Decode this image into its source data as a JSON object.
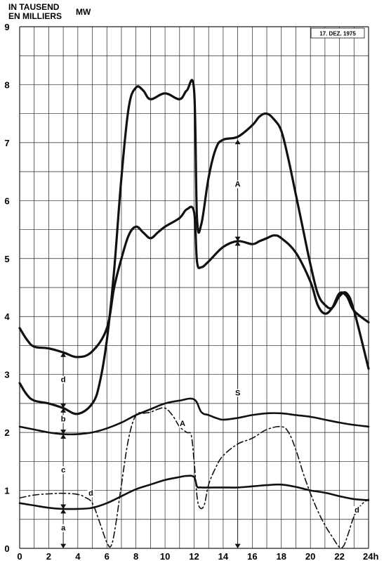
{
  "chart_data": {
    "type": "line",
    "ylabel_lines": [
      "IN TAUSEND",
      "EN MILLIERS"
    ],
    "ylabel_unit": "MW",
    "date_box": "17. DEZ. 1975",
    "xlim": [
      0,
      24
    ],
    "ylim": [
      0,
      9
    ],
    "x_ticks": [
      "0",
      "2",
      "4",
      "6",
      "8",
      "10",
      "12",
      "14",
      "16",
      "18",
      "20",
      "22",
      "24h"
    ],
    "y_ticks": [
      "0",
      "1",
      "2",
      "3",
      "4",
      "5",
      "6",
      "7",
      "8",
      "9"
    ],
    "grid": true,
    "series": [
      {
        "key": "upper",
        "style": "solid-heavy",
        "x": [
          0,
          0.5,
          1,
          2,
          3,
          4,
          5,
          5.5,
          6,
          6.5,
          7,
          7.5,
          8,
          8.5,
          9,
          10,
          11,
          11.5,
          12,
          12.2,
          12.5,
          13,
          13.5,
          14,
          15,
          16,
          16.5,
          17,
          17.5,
          18,
          18.5,
          19,
          19.5,
          20,
          20.5,
          21,
          21.5,
          22,
          22.5,
          23,
          24
        ],
        "y": [
          2.85,
          2.65,
          2.55,
          2.5,
          2.42,
          2.32,
          2.5,
          2.85,
          3.6,
          4.8,
          6.4,
          7.6,
          7.95,
          7.9,
          7.75,
          7.85,
          7.75,
          7.9,
          7.9,
          5.7,
          5.6,
          6.4,
          6.9,
          7.05,
          7.1,
          7.3,
          7.45,
          7.5,
          7.4,
          7.2,
          6.7,
          6.1,
          5.5,
          4.9,
          4.4,
          4.2,
          4.15,
          4.35,
          4.4,
          4.1,
          3.1
        ]
      },
      {
        "key": "middle",
        "style": "solid-heavy",
        "x": [
          0,
          0.5,
          1,
          2,
          3,
          4,
          5,
          6,
          6.5,
          7,
          7.5,
          8,
          8.5,
          9,
          9.5,
          10,
          11,
          11.5,
          12,
          12.2,
          12.5,
          13,
          14,
          15,
          16,
          16.5,
          17,
          17.5,
          18,
          19,
          20,
          20.5,
          21,
          21.5,
          22,
          22.5,
          23,
          24
        ],
        "y": [
          3.8,
          3.6,
          3.48,
          3.45,
          3.38,
          3.3,
          3.4,
          3.8,
          4.5,
          5.0,
          5.4,
          5.55,
          5.45,
          5.35,
          5.45,
          5.55,
          5.7,
          5.85,
          5.8,
          4.95,
          4.85,
          4.95,
          5.2,
          5.3,
          5.25,
          5.3,
          5.35,
          5.4,
          5.35,
          5.1,
          4.6,
          4.2,
          4.05,
          4.15,
          4.4,
          4.35,
          4.1,
          3.9
        ]
      },
      {
        "key": "b",
        "style": "solid",
        "x": [
          0,
          1,
          2,
          3,
          4,
          5,
          6,
          7,
          8,
          9,
          10,
          11,
          12,
          12.5,
          13,
          13.5,
          14,
          15,
          16,
          17,
          18,
          19,
          20,
          21,
          22,
          23,
          24
        ],
        "y": [
          2.1,
          2.05,
          2.0,
          1.97,
          1.97,
          2.0,
          2.07,
          2.17,
          2.3,
          2.4,
          2.5,
          2.55,
          2.57,
          2.35,
          2.3,
          2.25,
          2.22,
          2.25,
          2.3,
          2.33,
          2.33,
          2.3,
          2.27,
          2.22,
          2.17,
          2.13,
          2.1
        ]
      },
      {
        "key": "a",
        "style": "solid",
        "x": [
          0,
          1,
          2,
          3,
          4,
          5,
          6,
          7,
          8,
          9,
          10,
          11,
          11.5,
          12,
          12.2,
          12.5,
          14,
          15,
          16,
          17,
          18,
          19,
          20,
          21,
          22,
          23,
          24
        ],
        "y": [
          0.78,
          0.74,
          0.7,
          0.68,
          0.68,
          0.7,
          0.78,
          0.9,
          1.02,
          1.1,
          1.18,
          1.23,
          1.25,
          1.23,
          1.07,
          1.05,
          1.05,
          1.05,
          1.07,
          1.09,
          1.1,
          1.06,
          1.0,
          0.96,
          0.9,
          0.85,
          0.83
        ]
      },
      {
        "key": "d",
        "style": "dash-dot",
        "x": [
          0,
          1,
          2,
          3,
          4,
          4.5,
          5,
          5.5,
          6,
          6.3,
          6.6,
          7,
          7.5,
          8,
          8.5,
          9,
          9.5,
          10,
          10.5,
          11,
          11.5,
          11.8,
          12,
          12.2,
          12.4,
          12.7,
          13,
          13.5,
          14,
          15,
          16,
          17,
          18,
          18.5,
          19,
          19.5,
          20,
          20.5,
          21,
          21.5,
          22,
          22.3,
          22.6,
          23,
          23.5,
          24
        ],
        "y": [
          0.87,
          0.92,
          0.94,
          0.95,
          0.93,
          0.88,
          0.78,
          0.45,
          0.1,
          0.05,
          0.4,
          1.1,
          1.9,
          2.3,
          2.33,
          2.35,
          2.4,
          2.42,
          2.3,
          2.1,
          2.0,
          1.95,
          1.5,
          0.9,
          0.7,
          0.75,
          1.1,
          1.4,
          1.6,
          1.8,
          1.9,
          2.05,
          2.1,
          2.0,
          1.7,
          1.3,
          0.95,
          0.65,
          0.4,
          0.2,
          0.02,
          0.05,
          0.25,
          0.55,
          0.75,
          0.85
        ]
      }
    ],
    "annotations": [
      {
        "text": "A",
        "x": 15,
        "y": 6.25
      },
      {
        "text": "S",
        "x": 15,
        "y": 2.65
      },
      {
        "text": "A",
        "x": 11.2,
        "y": 2.12
      },
      {
        "text": "a",
        "x": 3,
        "y": 0.32
      },
      {
        "text": "b",
        "x": 3,
        "y": 2.2
      },
      {
        "text": "c",
        "x": 3,
        "y": 1.32
      },
      {
        "text": "d",
        "x": 3,
        "y": 2.88
      },
      {
        "text": "d",
        "x": 4.9,
        "y": 0.92
      },
      {
        "text": "d",
        "x": 23.2,
        "y": 0.63
      }
    ],
    "arrows": [
      {
        "x": 15,
        "from": 5.3,
        "to": 7.05
      },
      {
        "x": 15,
        "from": 0,
        "to": 5.3
      },
      {
        "x": 3,
        "from": 0,
        "to": 0.68
      },
      {
        "x": 3,
        "from": 0.68,
        "to": 1.97
      },
      {
        "x": 3,
        "from": 1.97,
        "to": 2.42
      },
      {
        "x": 3,
        "from": 2.42,
        "to": 3.38
      }
    ]
  }
}
